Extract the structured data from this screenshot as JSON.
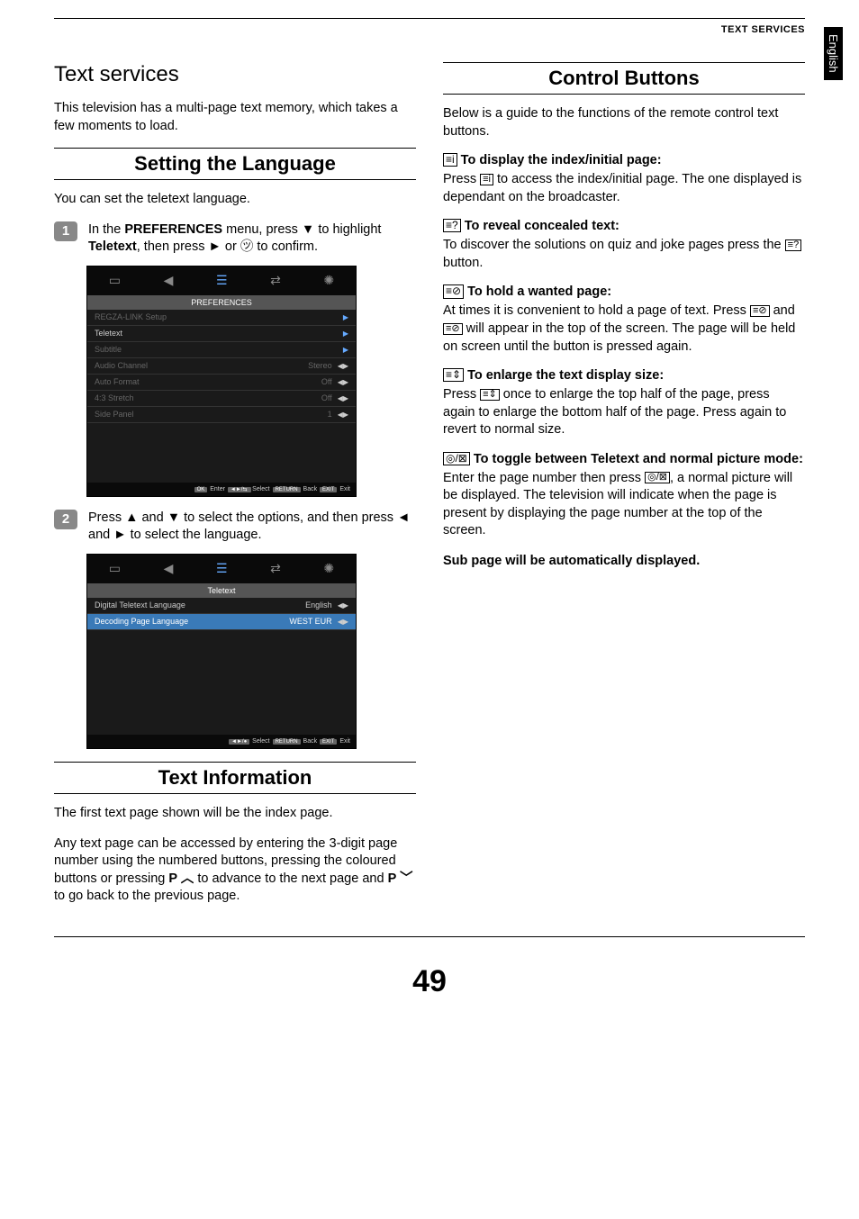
{
  "header": {
    "category": "TEXT SERVICES",
    "side_tab": "English"
  },
  "page_number": "49",
  "left": {
    "title": "Text services",
    "intro": "This television has a multi-page text memory, which takes a few moments to load.",
    "s1": {
      "heading": "Setting the Language",
      "lead": "You can set the teletext language.",
      "step1_a": "In the ",
      "step1_b": "PREFERENCES",
      "step1_c": " menu, press ▼ to highlight ",
      "step1_d": "Teletext",
      "step1_e": ", then press ► or ㋡ to confirm.",
      "step2": "Press ▲ and ▼ to select the options, and then press ◄ and ► to select the language.",
      "menu1": {
        "title": "PREFERENCES",
        "rows": [
          {
            "l": "REGZA-LINK Setup",
            "r": "",
            "t": "arrow",
            "dim": true
          },
          {
            "l": "Teletext",
            "r": "",
            "t": "arrow",
            "dim": false
          },
          {
            "l": "Subtitle",
            "r": "",
            "t": "arrow",
            "dim": true
          },
          {
            "l": "Audio Channel",
            "r": "Stereo",
            "t": "lr",
            "dim": true
          },
          {
            "l": "Auto Format",
            "r": "Off",
            "t": "lr",
            "dim": true
          },
          {
            "l": "4:3 Stretch",
            "r": "Off",
            "t": "lr",
            "dim": true
          },
          {
            "l": "Side Panel",
            "r": "1",
            "t": "lr",
            "dim": true
          }
        ],
        "foot": [
          "OK",
          "Enter",
          " ◄►/⇆ ",
          "Select",
          "RETURN",
          "Back",
          "EXIT",
          "Exit"
        ]
      },
      "menu2": {
        "title": "Teletext",
        "rows": [
          {
            "l": "Digital Teletext Language",
            "r": "English",
            "t": "lr",
            "dim": false
          },
          {
            "l": "Decoding Page Language",
            "r": "WEST EUR",
            "t": "lr",
            "dim": false,
            "hl": true
          }
        ],
        "foot": [
          "◄►/●",
          "Select",
          "RETURN",
          "Back",
          "EXIT",
          "Exit"
        ]
      }
    },
    "s2": {
      "heading": "Text Information",
      "p1": "The first text page shown will be the index page.",
      "p2_a": "Any text page can be accessed by entering the 3-digit page number using the numbered buttons, pressing the coloured buttons or pressing ",
      "p2_b": "P ︿",
      "p2_c": " to advance to the next page and ",
      "p2_d": "P ﹀",
      "p2_e": " to go back to the previous page."
    }
  },
  "right": {
    "heading": "Control Buttons",
    "lead": "Below is a guide to the functions of the remote control text buttons.",
    "items": [
      {
        "glyph": "≡i",
        "title": "To display the index/initial page:",
        "body_a": "Press ",
        "body_glyph": "≡i",
        "body_b": " to access the index/initial page. The one displayed is dependant on the broadcaster."
      },
      {
        "glyph": "≡?",
        "title": "To reveal concealed text:",
        "body_a": "To discover the solutions on quiz and joke pages press the ",
        "body_glyph": "≡?",
        "body_b": " button."
      },
      {
        "glyph": "≡⊘",
        "title": "To hold a wanted page:",
        "body_a": "At times it is convenient to hold a page of text. Press ",
        "body_glyph": "≡⊘",
        "body_mid": " and ",
        "body_glyph2": "≡⊘",
        "body_b": " will appear in the top of the screen. The page will be held on screen until the button is pressed again."
      },
      {
        "glyph": "≡⇕",
        "title": "To enlarge the text display size:",
        "body_a": "Press ",
        "body_glyph": "≡⇕",
        "body_b": " once to enlarge the top half of the page, press again to enlarge the bottom half of the page. Press again to revert to normal size."
      },
      {
        "glyph": "◎/⊠",
        "title": "To toggle between Teletext and normal picture mode:",
        "body_a": "Enter the page number then press ",
        "body_glyph": "◎/⊠",
        "body_b": ", a normal picture will be displayed. The television will indicate when the page is present by displaying the page number at the top of the screen."
      }
    ],
    "tail": "Sub page will be automatically displayed."
  }
}
